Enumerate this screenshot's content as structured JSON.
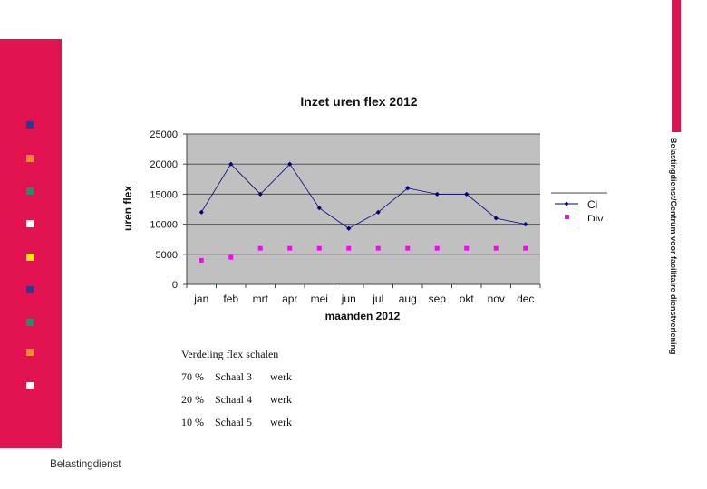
{
  "colors": {
    "accent": "#e0124f",
    "plot_bg": "#c0c0c0",
    "series_ci": "#00007a",
    "series_div": "#ff00ff",
    "squares": [
      "#2b3990",
      "#f58a34",
      "#2a8a6e",
      "#ffffff",
      "#ffe600",
      "#2b3990",
      "#2a8a6e",
      "#f58a34",
      "#ffffff"
    ]
  },
  "brand": {
    "side_text": "Belastingdienst/Centrum voor facilitaire dienstverlening",
    "footer": "Belastingdienst"
  },
  "chart_data": {
    "type": "line",
    "title": "Inzet uren flex 2012",
    "xlabel": "maanden 2012",
    "ylabel": "uren flex",
    "categories": [
      "jan",
      "feb",
      "mrt",
      "apr",
      "mei",
      "jun",
      "jul",
      "aug",
      "sep",
      "okt",
      "nov",
      "dec"
    ],
    "ylim": [
      0,
      25000
    ],
    "yticks": [
      "0",
      "5000",
      "10000",
      "15000",
      "20000",
      "25000"
    ],
    "grid": "horizontal",
    "legend": "right",
    "series": [
      {
        "name": "Ci",
        "marker": "diamond",
        "values": [
          12000,
          20000,
          15000,
          20000,
          12700,
          9300,
          12000,
          16000,
          15000,
          15000,
          11000,
          10000
        ]
      },
      {
        "name": "Div",
        "marker": "square",
        "values": [
          4000,
          4500,
          6000,
          6000,
          6000,
          6000,
          6000,
          6000,
          6000,
          6000,
          6000,
          6000
        ]
      }
    ]
  },
  "notes": {
    "title": "Verdeling flex schalen",
    "rows": [
      {
        "pct": "70 %",
        "schaal": "Schaal 3",
        "type": "werk"
      },
      {
        "pct": "20 %",
        "schaal": "Schaal 4",
        "type": "werk"
      },
      {
        "pct": "10 %",
        "schaal": "Schaal 5",
        "type": "werk"
      }
    ]
  }
}
